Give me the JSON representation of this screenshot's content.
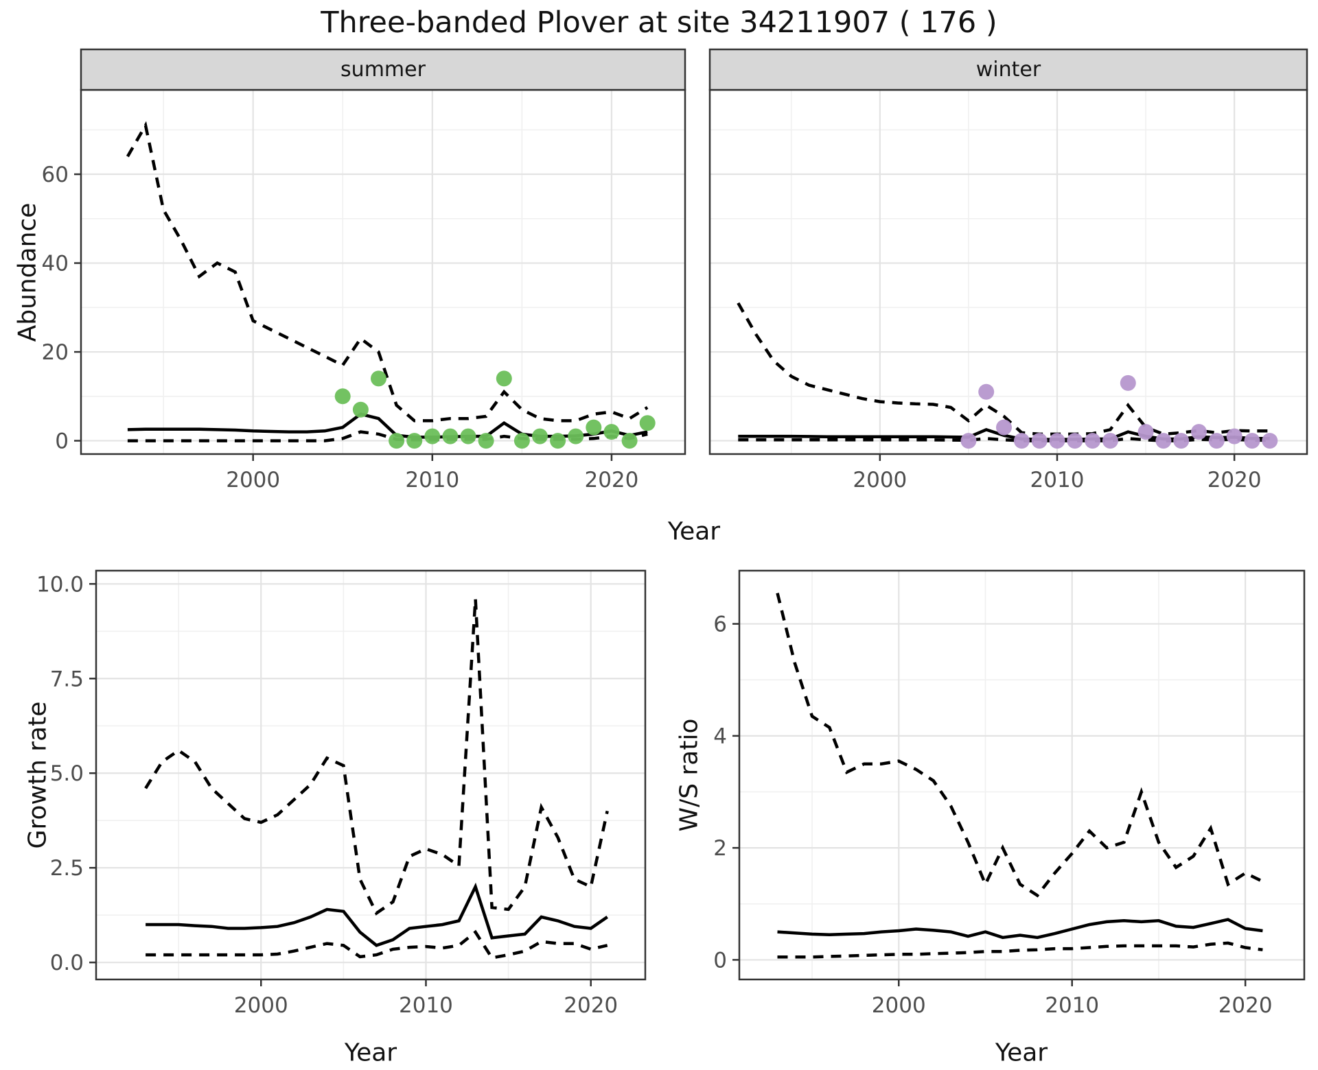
{
  "title": "Three-banded Plover at site 34211907 ( 176 )",
  "colors": {
    "summer_point": "#6cbf5a",
    "winter_point": "#b697ce",
    "line": "#000000",
    "grid_major": "#e3e3e3",
    "grid_minor": "#f0f0f0",
    "strip_bg": "#d7d7d7",
    "panel_border": "#333333",
    "tick_text": "#4d4d4d"
  },
  "chart_data": [
    {
      "id": "abundance_summer",
      "type": "line",
      "facet": "summer",
      "title_strip": "summer",
      "xlabel": "Year",
      "ylabel": "Abundance",
      "grid": true,
      "legend": "none",
      "xlim": [
        1990.4,
        2024.1
      ],
      "ylim": [
        -3.0,
        79.0
      ],
      "x_ticks": [
        2000,
        2010,
        2020
      ],
      "x_tick_labels": [
        "2000",
        "2010",
        "2020"
      ],
      "x_minor": [
        1995,
        2005,
        2015
      ],
      "y_ticks": [
        0,
        20,
        40,
        60
      ],
      "y_tick_labels": [
        "0",
        "20",
        "40",
        "60"
      ],
      "y_minor": [
        10,
        30,
        50,
        70
      ],
      "x": [
        1993,
        1994,
        1995,
        1996,
        1997,
        1998,
        1999,
        2000,
        2001,
        2002,
        2003,
        2004,
        2005,
        2006,
        2007,
        2008,
        2009,
        2010,
        2011,
        2012,
        2013,
        2014,
        2015,
        2016,
        2017,
        2018,
        2019,
        2020,
        2021,
        2022
      ],
      "series": [
        {
          "name": "upper_95ci",
          "style": "dashed",
          "values": [
            64,
            71,
            52,
            45,
            37,
            40,
            38,
            27,
            25,
            23,
            21,
            19,
            17,
            23,
            20,
            8,
            4.5,
            4.5,
            5,
            5,
            5.5,
            11,
            7,
            5,
            4.5,
            4.5,
            6,
            6.5,
            5,
            7.5
          ]
        },
        {
          "name": "median",
          "style": "solid",
          "values": [
            2.5,
            2.6,
            2.6,
            2.6,
            2.6,
            2.5,
            2.4,
            2.2,
            2.1,
            2.0,
            2.0,
            2.2,
            3.0,
            6.0,
            5.0,
            1.2,
            0.8,
            0.8,
            0.9,
            1.0,
            1.0,
            4.0,
            1.5,
            1.0,
            1.0,
            1.1,
            1.5,
            2.2,
            1.2,
            2.0
          ]
        },
        {
          "name": "lower_95ci",
          "style": "dashed",
          "values": [
            0,
            0,
            0,
            0,
            0,
            0,
            0,
            0,
            0,
            0,
            0,
            0,
            0.5,
            2.0,
            1.5,
            0.3,
            0.2,
            0.2,
            0.3,
            0.3,
            0.3,
            1.0,
            0.5,
            0.3,
            0.3,
            0.3,
            0.5,
            1.0,
            0.5,
            1.5
          ]
        }
      ],
      "points": {
        "name": "observed_counts",
        "color": "#6cbf5a",
        "x": [
          2005,
          2006,
          2007,
          2008,
          2009,
          2010,
          2011,
          2012,
          2013,
          2014,
          2015,
          2016,
          2017,
          2018,
          2019,
          2020,
          2021,
          2022
        ],
        "y": [
          10,
          7,
          14,
          0,
          0,
          1,
          1,
          1,
          0,
          14,
          0,
          1,
          0,
          1,
          3,
          2,
          0,
          4
        ]
      }
    },
    {
      "id": "abundance_winter",
      "type": "line",
      "facet": "winter",
      "title_strip": "winter",
      "xlabel": "Year",
      "ylabel": "Abundance",
      "grid": true,
      "legend": "none",
      "xlim": [
        1990.4,
        2024.1
      ],
      "ylim": [
        -3.0,
        79.0
      ],
      "x_ticks": [
        2000,
        2010,
        2020
      ],
      "x_tick_labels": [
        "2000",
        "2010",
        "2020"
      ],
      "x_minor": [
        1995,
        2005,
        2015
      ],
      "y_ticks": [
        0,
        20,
        40,
        60
      ],
      "y_tick_labels": [],
      "y_minor": [
        10,
        30,
        50,
        70
      ],
      "x": [
        1992,
        1993,
        1994,
        1995,
        1996,
        1997,
        1998,
        1999,
        2000,
        2001,
        2002,
        2003,
        2004,
        2005,
        2006,
        2007,
        2008,
        2009,
        2010,
        2011,
        2012,
        2013,
        2014,
        2015,
        2016,
        2017,
        2018,
        2019,
        2020,
        2021,
        2022
      ],
      "series": [
        {
          "name": "upper_95ci",
          "style": "dashed",
          "values": [
            31,
            24,
            18,
            14.5,
            12.5,
            11.5,
            10.5,
            9.5,
            8.8,
            8.5,
            8.3,
            8.2,
            7.5,
            4.5,
            8,
            5.5,
            1.8,
            1.5,
            1.5,
            1.5,
            1.6,
            2.5,
            8,
            3,
            1.5,
            1.8,
            2.3,
            1.8,
            2.3,
            2.2,
            2.2
          ]
        },
        {
          "name": "median",
          "style": "solid",
          "values": [
            1.0,
            1.0,
            1.0,
            1.0,
            0.95,
            0.9,
            0.9,
            0.9,
            0.9,
            0.9,
            0.9,
            0.9,
            0.85,
            0.8,
            2.5,
            1.2,
            0.4,
            0.3,
            0.3,
            0.3,
            0.4,
            0.4,
            2.0,
            1.0,
            0.4,
            0.4,
            0.9,
            0.7,
            0.8,
            0.5,
            0.5
          ]
        },
        {
          "name": "lower_95ci",
          "style": "dashed",
          "values": [
            0.2,
            0.2,
            0.2,
            0.2,
            0.2,
            0.2,
            0.2,
            0.2,
            0.2,
            0.2,
            0.2,
            0.2,
            0.15,
            0.1,
            0.5,
            0.2,
            0,
            0,
            0,
            0,
            0,
            0,
            0.5,
            0.2,
            0,
            0,
            0.3,
            0.2,
            0.3,
            0.1,
            0.1
          ]
        }
      ],
      "points": {
        "name": "observed_counts",
        "color": "#b697ce",
        "x": [
          2005,
          2006,
          2007,
          2008,
          2009,
          2010,
          2011,
          2012,
          2013,
          2014,
          2015,
          2016,
          2017,
          2018,
          2019,
          2020,
          2021,
          2022
        ],
        "y": [
          0,
          11,
          3,
          0,
          0,
          0,
          0,
          0,
          0,
          13,
          2,
          0,
          0,
          2,
          0,
          1,
          0,
          0
        ]
      }
    },
    {
      "id": "growth_rate",
      "type": "line",
      "facet": null,
      "xlabel": "Year",
      "ylabel": "Growth rate",
      "grid": true,
      "legend": "none",
      "xlim": [
        1990.0,
        2023.3
      ],
      "ylim": [
        -0.45,
        10.35
      ],
      "x_ticks": [
        2000,
        2010,
        2020
      ],
      "x_tick_labels": [
        "2000",
        "2010",
        "2020"
      ],
      "x_minor": [
        1995,
        2005,
        2015
      ],
      "y_ticks": [
        0,
        2.5,
        5,
        7.5,
        10
      ],
      "y_tick_labels": [
        "0.0",
        "2.5",
        "5.0",
        "7.5",
        "10.0"
      ],
      "y_minor": [
        1.25,
        3.75,
        6.25,
        8.75
      ],
      "x": [
        1993,
        1994,
        1995,
        1996,
        1997,
        1998,
        1999,
        2000,
        2001,
        2002,
        2003,
        2004,
        2005,
        2006,
        2007,
        2008,
        2009,
        2010,
        2011,
        2012,
        2013,
        2014,
        2015,
        2016,
        2017,
        2018,
        2019,
        2020,
        2021
      ],
      "series": [
        {
          "name": "upper_95ci",
          "style": "dashed",
          "values": [
            4.6,
            5.3,
            5.6,
            5.3,
            4.6,
            4.2,
            3.8,
            3.7,
            3.9,
            4.3,
            4.7,
            5.4,
            5.2,
            2.2,
            1.3,
            1.6,
            2.8,
            3.0,
            2.85,
            2.55,
            9.6,
            1.45,
            1.4,
            2.0,
            4.1,
            3.3,
            2.2,
            2.0,
            4.0
          ]
        },
        {
          "name": "median",
          "style": "solid",
          "values": [
            1.0,
            1.0,
            1.0,
            0.97,
            0.95,
            0.9,
            0.9,
            0.92,
            0.95,
            1.05,
            1.2,
            1.4,
            1.35,
            0.8,
            0.45,
            0.6,
            0.9,
            0.95,
            1.0,
            1.1,
            2.0,
            0.65,
            0.7,
            0.75,
            1.2,
            1.1,
            0.95,
            0.9,
            1.2
          ]
        },
        {
          "name": "lower_95ci",
          "style": "dashed",
          "values": [
            0.2,
            0.2,
            0.2,
            0.2,
            0.2,
            0.2,
            0.2,
            0.2,
            0.22,
            0.3,
            0.4,
            0.5,
            0.45,
            0.15,
            0.2,
            0.35,
            0.4,
            0.42,
            0.38,
            0.45,
            0.8,
            0.12,
            0.2,
            0.3,
            0.55,
            0.5,
            0.5,
            0.35,
            0.45
          ]
        }
      ],
      "points": null
    },
    {
      "id": "ws_ratio",
      "type": "line",
      "facet": null,
      "xlabel": "Year",
      "ylabel": "W/S ratio",
      "grid": true,
      "legend": "none",
      "xlim": [
        1990.8,
        2023.4
      ],
      "ylim": [
        -0.35,
        6.95
      ],
      "x_ticks": [
        2000,
        2010,
        2020
      ],
      "x_tick_labels": [
        "2000",
        "2010",
        "2020"
      ],
      "x_minor": [
        1995,
        2005,
        2015
      ],
      "y_ticks": [
        0,
        2,
        4,
        6
      ],
      "y_tick_labels": [
        "0",
        "2",
        "4",
        "6"
      ],
      "y_minor": [
        1,
        3,
        5
      ],
      "x": [
        1993,
        1994,
        1995,
        1996,
        1997,
        1998,
        1999,
        2000,
        2001,
        2002,
        2003,
        2004,
        2005,
        2006,
        2007,
        2008,
        2009,
        2010,
        2011,
        2012,
        2013,
        2014,
        2015,
        2016,
        2017,
        2018,
        2019,
        2020,
        2021
      ],
      "series": [
        {
          "name": "upper_95ci",
          "style": "dashed",
          "values": [
            6.55,
            5.3,
            4.35,
            4.15,
            3.35,
            3.5,
            3.5,
            3.55,
            3.4,
            3.2,
            2.75,
            2.1,
            1.35,
            2.0,
            1.35,
            1.15,
            1.55,
            1.9,
            2.3,
            2.0,
            2.1,
            3.0,
            2.1,
            1.65,
            1.85,
            2.35,
            1.35,
            1.55,
            1.4
          ]
        },
        {
          "name": "median",
          "style": "solid",
          "values": [
            0.5,
            0.48,
            0.46,
            0.45,
            0.46,
            0.47,
            0.5,
            0.52,
            0.55,
            0.53,
            0.5,
            0.42,
            0.5,
            0.4,
            0.44,
            0.4,
            0.47,
            0.55,
            0.63,
            0.68,
            0.7,
            0.68,
            0.7,
            0.6,
            0.58,
            0.65,
            0.72,
            0.56,
            0.52
          ]
        },
        {
          "name": "lower_95ci",
          "style": "dashed",
          "values": [
            0.05,
            0.05,
            0.05,
            0.06,
            0.07,
            0.08,
            0.09,
            0.1,
            0.1,
            0.11,
            0.12,
            0.13,
            0.15,
            0.15,
            0.17,
            0.18,
            0.2,
            0.2,
            0.22,
            0.24,
            0.25,
            0.25,
            0.25,
            0.25,
            0.23,
            0.28,
            0.3,
            0.22,
            0.18
          ]
        }
      ],
      "points": null
    }
  ]
}
